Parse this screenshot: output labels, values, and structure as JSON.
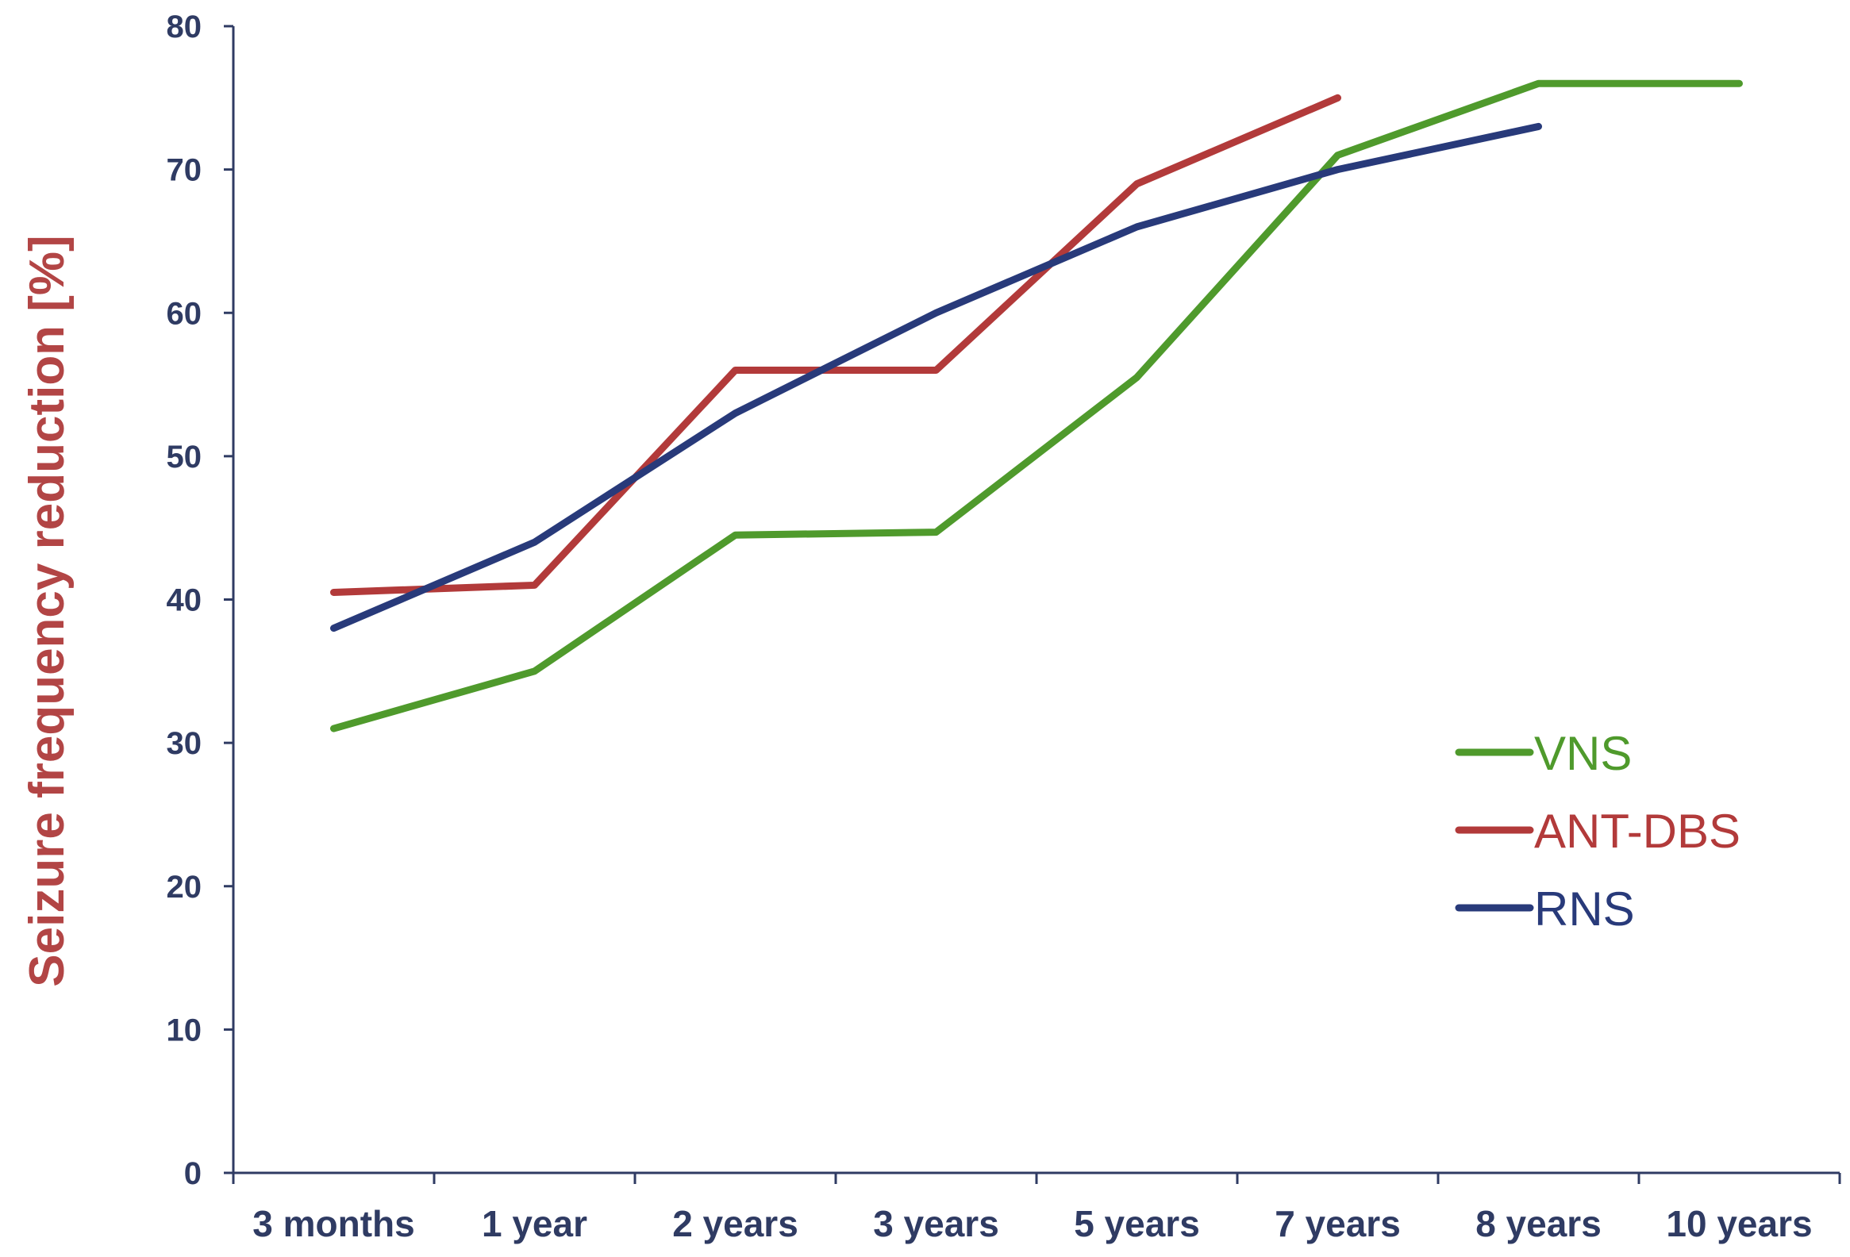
{
  "chart_data": {
    "type": "line",
    "title": "",
    "xlabel": "",
    "ylabel": "Seizure frequency reduction [%]",
    "categories": [
      "3 months",
      "1 year",
      "2 years",
      "3 years",
      "5 years",
      "7 years",
      "8 years",
      "10 years"
    ],
    "ylim": [
      0,
      80
    ],
    "yticks": [
      0,
      10,
      20,
      30,
      40,
      50,
      60,
      70,
      80
    ],
    "grid": false,
    "legend_position": "right",
    "series": [
      {
        "name": "VNS",
        "color": "#4f9a2c",
        "values": [
          31,
          35,
          44.5,
          44.7,
          55.5,
          71,
          76,
          76
        ]
      },
      {
        "name": "ANT-DBS",
        "color": "#b23a3a",
        "values": [
          40.5,
          41,
          56,
          56,
          69,
          75,
          null,
          null
        ]
      },
      {
        "name": "RNS",
        "color": "#283a7a",
        "values": [
          38,
          44,
          53,
          60,
          66,
          70,
          73,
          null
        ]
      }
    ],
    "axis_color": "#2f3b63"
  }
}
